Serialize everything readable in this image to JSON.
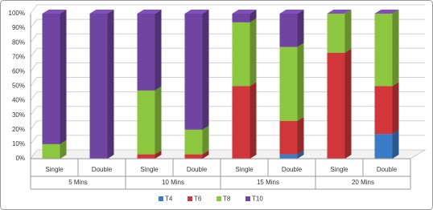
{
  "chart_data": {
    "type": "stacked_bar_3d",
    "categories": [
      "Single",
      "Double",
      "Single",
      "Double",
      "Single",
      "Double",
      "Single",
      "Double"
    ],
    "groups": [
      "5 Mins",
      "10 Mins",
      "15 Mins",
      "20 Mins"
    ],
    "series": [
      {
        "name": "T4",
        "color": "#3b7cc8",
        "values": [
          0,
          0,
          0,
          0,
          0,
          3,
          0,
          17
        ]
      },
      {
        "name": "T6",
        "color": "#d1373a",
        "values": [
          0,
          0,
          3,
          3,
          50,
          23,
          73,
          33
        ]
      },
      {
        "name": "T8",
        "color": "#8dc63f",
        "values": [
          10,
          0,
          44,
          17,
          44,
          51,
          27,
          50
        ]
      },
      {
        "name": "T10",
        "color": "#6f45a1",
        "values": [
          90,
          100,
          53,
          80,
          6,
          23,
          0,
          0
        ]
      }
    ],
    "ylim": [
      0,
      100
    ],
    "yticks": [
      {
        "value": 0,
        "label": "0%"
      },
      {
        "value": 10,
        "label": "10%"
      },
      {
        "value": 20,
        "label": "20%"
      },
      {
        "value": 30,
        "label": "30%"
      },
      {
        "value": 40,
        "label": "40%"
      },
      {
        "value": 50,
        "label": "50%"
      },
      {
        "value": 60,
        "label": "60%"
      },
      {
        "value": 70,
        "label": "70%"
      },
      {
        "value": 80,
        "label": "80%"
      },
      {
        "value": 90,
        "label": "90%"
      },
      {
        "value": 100,
        "label": "100%"
      }
    ],
    "grid": true,
    "legend": "bottom"
  }
}
